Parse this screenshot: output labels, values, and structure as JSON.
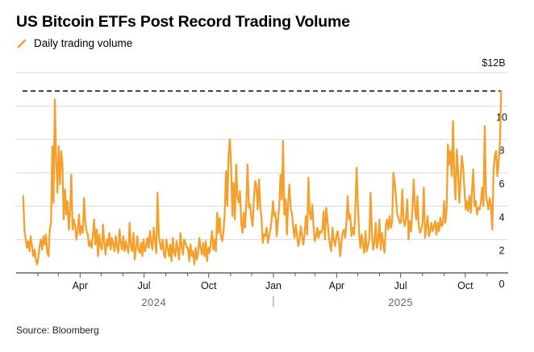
{
  "chart_data": {
    "type": "line",
    "title": "US Bitcoin ETFs Post Record Trading Volume",
    "source": "Source: Bloomberg",
    "series": [
      {
        "name": "Daily trading volume",
        "color": "#F5A02D",
        "unit": "USD billions",
        "start_date": "2024-01-11",
        "end_date": "2025-11-21",
        "values": [
          4.6,
          2.6,
          2.0,
          1.5,
          1.9,
          1.3,
          2.2,
          1.6,
          1.0,
          1.4,
          0.8,
          0.5,
          0.9,
          1.6,
          2.0,
          1.4,
          2.2,
          1.7,
          2.3,
          1.2,
          1.0,
          2.6,
          3.0,
          7.6,
          4.2,
          10.4,
          6.8,
          4.8,
          7.6,
          5.3,
          7.3,
          6.5,
          3.2,
          5.0,
          3.5,
          4.3,
          2.6,
          3.7,
          5.9,
          2.6,
          3.2,
          2.8,
          2.0,
          2.5,
          3.5,
          2.3,
          2.8,
          2.4,
          4.5,
          3.1,
          2.5,
          2.3,
          1.6,
          1.9,
          1.5,
          2.3,
          3.2,
          1.7,
          2.6,
          1.0,
          2.3,
          1.6,
          1.4,
          2.9,
          1.8,
          1.1,
          2.0,
          1.6,
          2.4,
          1.4,
          2.1,
          1.7,
          1.3,
          2.2,
          1.6,
          1.2,
          2.6,
          1.8,
          1.4,
          2.2,
          1.3,
          1.9,
          1.5,
          1.2,
          3.0,
          1.6,
          1.3,
          2.4,
          0.8,
          1.5,
          2.2,
          1.4,
          1.2,
          1.8,
          1.0,
          2.0,
          1.3,
          1.6,
          2.1,
          1.5,
          2.5,
          1.8,
          1.4,
          2.7,
          1.9,
          1.2,
          4.8,
          2.3,
          1.7,
          1.4,
          2.0,
          1.1,
          0.9,
          2.0,
          1.5,
          1.0,
          1.7,
          0.7,
          2.1,
          1.2,
          1.0,
          1.9,
          1.4,
          0.8,
          2.4,
          1.6,
          1.1,
          2.0,
          1.8,
          1.5,
          1.5,
          0.7,
          1.7,
          1.0,
          1.3,
          0.5,
          1.5,
          0.8,
          1.2,
          2.1,
          1.5,
          1.1,
          1.8,
          1.0,
          1.9,
          0.7,
          1.5,
          1.2,
          1.8,
          2.5,
          1.4,
          2.0,
          1.3,
          3.6,
          2.4,
          3.3,
          2.2,
          1.9,
          2.5,
          3.6,
          6.1,
          4.0,
          7.0,
          8.0,
          6.4,
          3.4,
          5.4,
          3.2,
          6.5,
          4.6,
          4.2,
          4.9,
          3.0,
          2.4,
          3.6,
          2.7,
          4.3,
          6.5,
          3.9,
          4.1,
          3.3,
          2.8,
          4.5,
          5.5,
          5.2,
          3.8,
          5.6,
          4.0,
          3.3,
          1.8,
          2.3,
          2.2,
          2.7,
          1.8,
          2.2,
          2.6,
          3.2,
          4.3,
          3.4,
          3.6,
          2.2,
          3.1,
          4.0,
          5.9,
          4.4,
          7.9,
          3.5,
          4.4,
          2.3,
          4.2,
          5.3,
          3.8,
          3.6,
          2.7,
          2.1,
          2.9,
          2.3,
          1.6,
          2.0,
          2.8,
          2.2,
          1.7,
          2.4,
          3.4,
          2.3,
          5.7,
          3.6,
          3.2,
          4.1,
          2.8,
          1.9,
          2.2,
          2.7,
          2.1,
          2.5,
          2.4,
          2.6,
          3.7,
          2.0,
          3.9,
          3.2,
          2.2,
          1.7,
          1.3,
          2.7,
          2.0,
          1.6,
          2.2,
          2.5,
          2.0,
          1.0,
          1.8,
          2.4,
          2.6,
          2.1,
          3.0,
          4.6,
          3.2,
          3.5,
          2.2,
          2.7,
          2.3,
          3.8,
          6.3,
          4.1,
          2.4,
          1.5,
          2.3,
          1.6,
          1.2,
          2.5,
          1.3,
          1.6,
          2.0,
          4.8,
          2.4,
          1.4,
          1.8,
          3.0,
          1.5,
          1.9,
          3.2,
          1.4,
          2.4,
          1.8,
          1.2,
          2.8,
          3.2,
          2.6,
          3.4,
          2.7,
          3.0,
          6.0,
          5.4,
          4.6,
          3.5,
          3.3,
          3.0,
          3.0,
          5.0,
          3.2,
          2.8,
          3.3,
          4.4,
          2.0,
          3.1,
          2.5,
          3.8,
          5.6,
          4.0,
          3.2,
          4.6,
          2.8,
          2.4,
          2.6,
          3.0,
          5.1,
          2.1,
          2.7,
          3.4,
          2.2,
          2.5,
          3.0,
          2.5,
          2.8,
          3.1,
          2.3,
          3.0,
          2.5,
          3.3,
          2.8,
          2.9,
          4.3,
          3.0,
          3.8,
          7.7,
          6.5,
          7.3,
          5.8,
          9.1,
          5.9,
          4.4,
          7.4,
          6.2,
          4.2,
          5.6,
          7.0,
          6.4,
          5.1,
          3.8,
          4.3,
          3.7,
          4.6,
          3.6,
          4.9,
          6.2,
          4.0,
          4.3,
          3.5,
          3.9,
          3.8,
          4.2,
          5.1,
          4.0,
          8.8,
          4.7,
          4.2,
          3.8,
          4.5,
          4.0,
          2.6,
          6.2,
          7.0,
          7.3,
          5.8,
          6.6,
          7.7,
          10.9
        ]
      }
    ],
    "annotations": [
      {
        "type": "dashed-reference-line",
        "value": 10.9,
        "description": "record level"
      }
    ],
    "yaxis": {
      "label": "",
      "unit_label": "$12B",
      "ticks": [
        "0",
        "2",
        "4",
        "6",
        "8",
        "10",
        "$12B"
      ],
      "tick_values": [
        0,
        2,
        4,
        6,
        8,
        10,
        12
      ],
      "ylim": [
        0,
        12
      ],
      "position": "right"
    },
    "xaxis": {
      "label": "",
      "month_ticks": [
        "Apr",
        "Jul",
        "Oct",
        "Jan",
        "Apr",
        "Jul",
        "Oct"
      ],
      "year_labels": [
        "2024",
        "2025"
      ],
      "xlim": [
        "2024-01-01",
        "2025-12-01"
      ]
    },
    "grid": true,
    "legend": {
      "entries": [
        "Daily trading volume"
      ],
      "placement": "top-left"
    }
  }
}
